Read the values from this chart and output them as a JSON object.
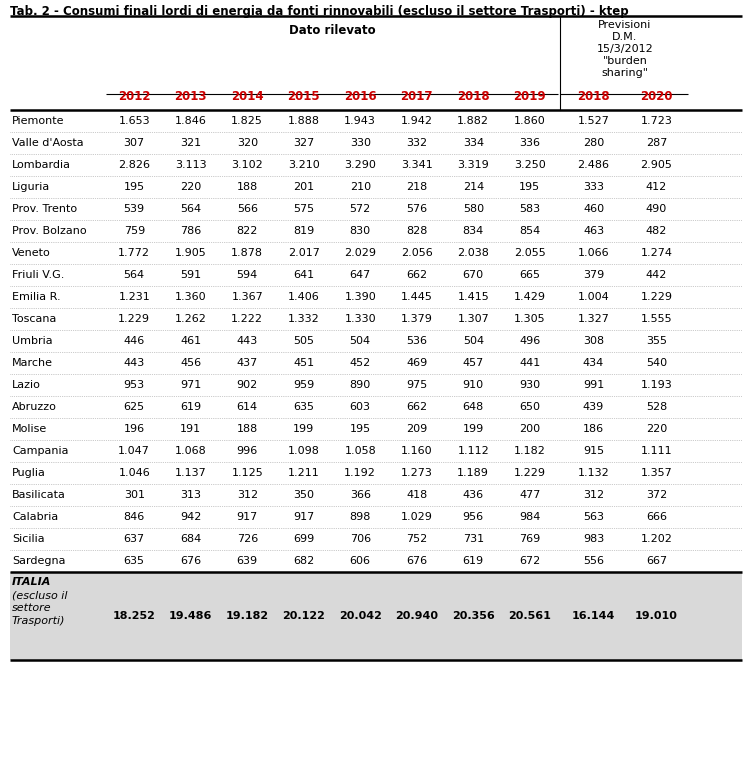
{
  "title": "Tab. 2 - Consumi finali lordi di energia da fonti rinnovabili (escluso il settore Trasporti) - ktep",
  "header_dato": "Dato rilevato",
  "header_prev_lines": [
    "Previsioni",
    "D.M.",
    "15/3/2012",
    "\"burden",
    "sharing\""
  ],
  "years_dato": [
    "2012",
    "2013",
    "2014",
    "2015",
    "2016",
    "2017",
    "2018",
    "2019"
  ],
  "years_prev": [
    "2018",
    "2020"
  ],
  "regions": [
    "Piemonte",
    "Valle d'Aosta",
    "Lombardia",
    "Liguria",
    "Prov. Trento",
    "Prov. Bolzano",
    "Veneto",
    "Friuli V.G.",
    "Emilia R.",
    "Toscana",
    "Umbria",
    "Marche",
    "Lazio",
    "Abruzzo",
    "Molise",
    "Campania",
    "Puglia",
    "Basilicata",
    "Calabria",
    "Sicilia",
    "Sardegna"
  ],
  "data": [
    [
      "1.653",
      "1.846",
      "1.825",
      "1.888",
      "1.943",
      "1.942",
      "1.882",
      "1.860",
      "1.527",
      "1.723"
    ],
    [
      "307",
      "321",
      "320",
      "327",
      "330",
      "332",
      "334",
      "336",
      "280",
      "287"
    ],
    [
      "2.826",
      "3.113",
      "3.102",
      "3.210",
      "3.290",
      "3.341",
      "3.319",
      "3.250",
      "2.486",
      "2.905"
    ],
    [
      "195",
      "220",
      "188",
      "201",
      "210",
      "218",
      "214",
      "195",
      "333",
      "412"
    ],
    [
      "539",
      "564",
      "566",
      "575",
      "572",
      "576",
      "580",
      "583",
      "460",
      "490"
    ],
    [
      "759",
      "786",
      "822",
      "819",
      "830",
      "828",
      "834",
      "854",
      "463",
      "482"
    ],
    [
      "1.772",
      "1.905",
      "1.878",
      "2.017",
      "2.029",
      "2.056",
      "2.038",
      "2.055",
      "1.066",
      "1.274"
    ],
    [
      "564",
      "591",
      "594",
      "641",
      "647",
      "662",
      "670",
      "665",
      "379",
      "442"
    ],
    [
      "1.231",
      "1.360",
      "1.367",
      "1.406",
      "1.390",
      "1.445",
      "1.415",
      "1.429",
      "1.004",
      "1.229"
    ],
    [
      "1.229",
      "1.262",
      "1.222",
      "1.332",
      "1.330",
      "1.379",
      "1.307",
      "1.305",
      "1.327",
      "1.555"
    ],
    [
      "446",
      "461",
      "443",
      "505",
      "504",
      "536",
      "504",
      "496",
      "308",
      "355"
    ],
    [
      "443",
      "456",
      "437",
      "451",
      "452",
      "469",
      "457",
      "441",
      "434",
      "540"
    ],
    [
      "953",
      "971",
      "902",
      "959",
      "890",
      "975",
      "910",
      "930",
      "991",
      "1.193"
    ],
    [
      "625",
      "619",
      "614",
      "635",
      "603",
      "662",
      "648",
      "650",
      "439",
      "528"
    ],
    [
      "196",
      "191",
      "188",
      "199",
      "195",
      "209",
      "199",
      "200",
      "186",
      "220"
    ],
    [
      "1.047",
      "1.068",
      "996",
      "1.098",
      "1.058",
      "1.160",
      "1.112",
      "1.182",
      "915",
      "1.111"
    ],
    [
      "1.046",
      "1.137",
      "1.125",
      "1.211",
      "1.192",
      "1.273",
      "1.189",
      "1.229",
      "1.132",
      "1.357"
    ],
    [
      "301",
      "313",
      "312",
      "350",
      "366",
      "418",
      "436",
      "477",
      "312",
      "372"
    ],
    [
      "846",
      "942",
      "917",
      "917",
      "898",
      "1.029",
      "956",
      "984",
      "563",
      "666"
    ],
    [
      "637",
      "684",
      "726",
      "699",
      "706",
      "752",
      "731",
      "769",
      "983",
      "1.202"
    ],
    [
      "635",
      "676",
      "639",
      "682",
      "606",
      "676",
      "619",
      "672",
      "556",
      "667"
    ]
  ],
  "total_data": [
    "18.252",
    "19.486",
    "19.182",
    "20.122",
    "20.042",
    "20.940",
    "20.356",
    "20.561",
    "16.144",
    "19.010"
  ],
  "year_color": "#cc0000",
  "bg_total": "#d9d9d9",
  "title_fontsize": 8.5,
  "header_fontsize": 8.5,
  "cell_fontsize": 8.0,
  "region_fontsize": 8.0
}
